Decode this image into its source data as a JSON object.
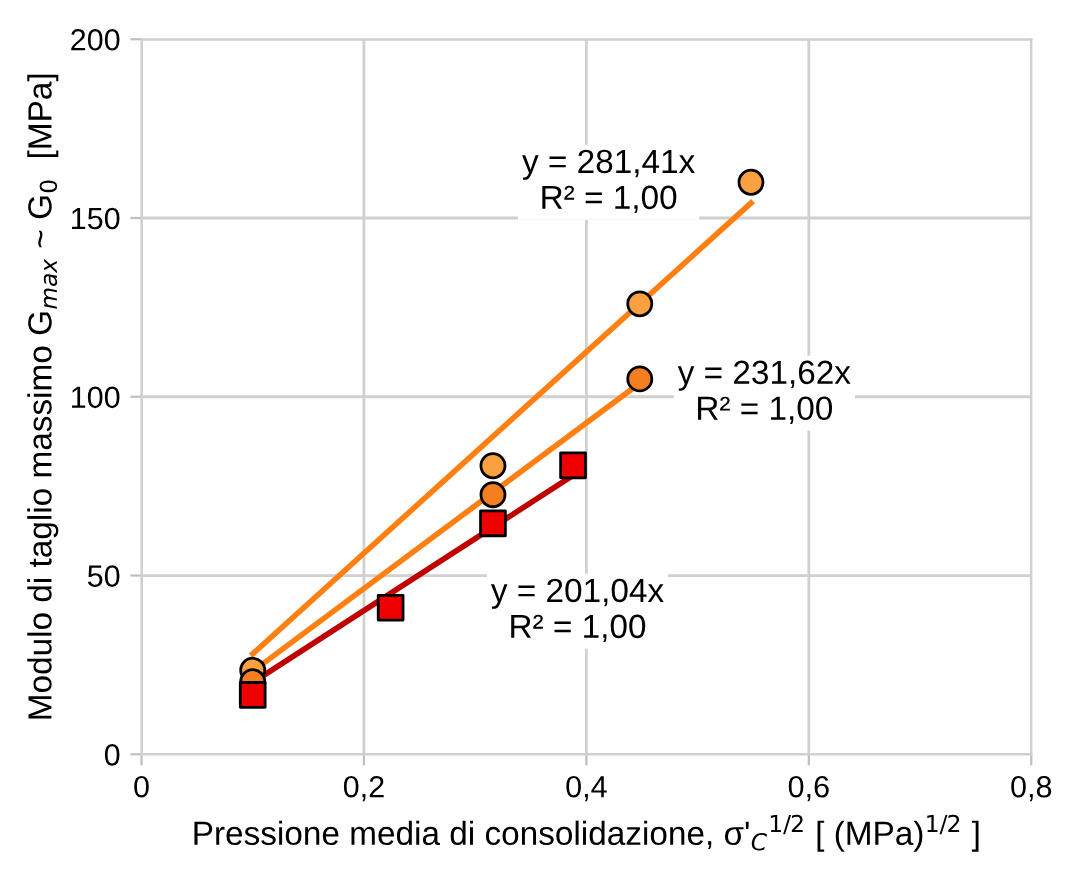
{
  "chart_data": {
    "type": "scatter",
    "xlabel": "Pressione media di consolidazione, σ'$_{C}$$^{1/2}$ [ (MPa)$^{1/2}$ ]",
    "ylabel": "Modulo di taglio massimo G$_{max}$ ~ G$_{0}$  [MPa]",
    "series": [
      {
        "marker": "circle",
        "color": "#f9a040",
        "x": [
          0.1,
          0.316,
          0.448,
          0.548
        ],
        "values": [
          23.5,
          80.7,
          126,
          160
        ]
      },
      {
        "marker": "circle",
        "color": "#f47f20",
        "x": [
          0.1,
          0.316,
          0.448
        ],
        "values": [
          20.3,
          72.6,
          105
        ]
      },
      {
        "marker": "square",
        "color": "#ee0000",
        "x": [
          0.1,
          0.224,
          0.316,
          0.388
        ],
        "values": [
          16.6,
          41,
          64.6,
          80.8
        ]
      },
      {
        "type": "line",
        "marker": "none",
        "line_style": "solid",
        "color": "#ff7f10",
        "x": [
          0.1,
          0.548
        ],
        "values": [
          28.1,
          154.2
        ]
      },
      {
        "type": "line",
        "marker": "none",
        "line_style": "solid",
        "color": "#ff7f10",
        "x": [
          0.1,
          0.448
        ],
        "values": [
          23.2,
          103.8
        ]
      },
      {
        "type": "line",
        "marker": "none",
        "line_style": "solid",
        "color": "#c00000",
        "x": [
          0.1,
          0.388
        ],
        "values": [
          20.1,
          78.0
        ]
      }
    ],
    "annotations": [
      "y = 281,41x\nR² = 1,00",
      "y = 231,62x\nR² = 1,00",
      "y = 201,04x\nR² = 1,00"
    ],
    "xlim": [
      0,
      0.8
    ],
    "xticks": [
      0,
      {
        "value": 0.2,
        "label": "0,2"
      },
      {
        "value": 0.4,
        "label": "0,4"
      },
      {
        "value": 0.6,
        "label": "0,6"
      },
      {
        "value": 0.8,
        "label": "0,8"
      }
    ],
    "ylim": [
      0,
      200
    ],
    "yticks": [
      0,
      50,
      100,
      150,
      200
    ],
    "grid": true,
    "legend": false
  }
}
